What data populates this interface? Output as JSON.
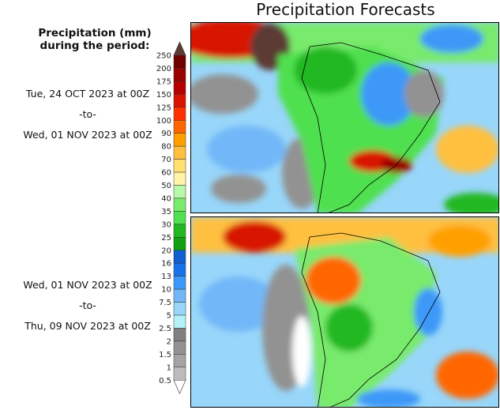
{
  "title": "Precipitation Forecasts",
  "legend": {
    "title_line1": "Precipitation (mm)",
    "title_line2": "during the period:",
    "labels": [
      "250",
      "200",
      "175",
      "150",
      "125",
      "100",
      "90",
      "80",
      "70",
      "60",
      "50",
      "40",
      "35",
      "30",
      "25",
      "20",
      "16",
      "13",
      "10",
      "7.5",
      "5",
      "2.5",
      "2",
      "1.5",
      "1",
      "0.5"
    ],
    "colors": [
      "#6e0000",
      "#980000",
      "#b60000",
      "#d81400",
      "#ff3000",
      "#ff6600",
      "#ffa000",
      "#ffc040",
      "#ffe070",
      "#fff4a8",
      "#b8f8a8",
      "#78ea6c",
      "#50e050",
      "#22b822",
      "#10a010",
      "#1060d0",
      "#1a70e8",
      "#3c98f8",
      "#72b8f8",
      "#98d6fa",
      "#b4f2fa",
      "#808080",
      "#929292",
      "#a4a4a4",
      "#bcbcbc"
    ],
    "over_color": "#5c3a34",
    "under_color": "#ffffff"
  },
  "periods": [
    {
      "start": "Tue, 24 OCT 2023 at 00Z",
      "sep": "-to-",
      "end": "Wed, 01 NOV 2023 at 00Z"
    },
    {
      "start": "Wed, 01 NOV 2023 at 00Z",
      "sep": "-to-",
      "end": "Thu, 09 NOV 2023 at 00Z"
    }
  ]
}
